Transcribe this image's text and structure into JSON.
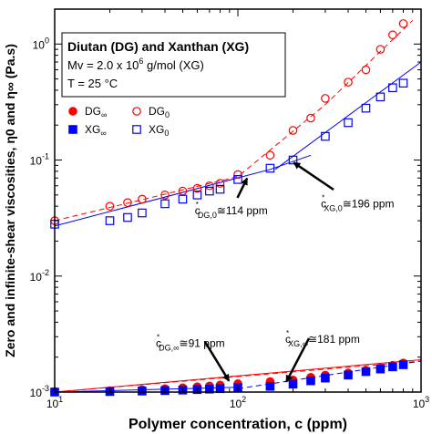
{
  "chart_data": {
    "type": "scatter",
    "x_scale": "log",
    "y_scale": "log",
    "xlim": [
      10,
      1000
    ],
    "ylim": [
      0.001,
      2
    ],
    "xlabel": "Polymer concentration, c (ppm)",
    "ylabel": "Zero and infinite-shear viscosities, η0 and η∞ (Pa.s)",
    "x_ticks": [
      {
        "v": 10,
        "label": "10^1"
      },
      {
        "v": 100,
        "label": "10^2"
      },
      {
        "v": 1000,
        "label": "10^3"
      }
    ],
    "y_ticks": [
      {
        "v": 0.001,
        "label": "10^-3"
      },
      {
        "v": 0.01,
        "label": "10^-2"
      },
      {
        "v": 0.1,
        "label": "10^-1"
      },
      {
        "v": 1,
        "label": "10^0"
      }
    ],
    "info": [
      "Diutan (DG) and Xanthan (XG)",
      "Mv = 2.0 x 10^6 g/mol (XG)",
      "T = 25 °C"
    ],
    "legend": [
      {
        "name": "DG∞",
        "marker": "filled-circle",
        "color": "#ff0000"
      },
      {
        "name": "DG0",
        "marker": "open-circle",
        "color": "#ff0000"
      },
      {
        "name": "XG∞",
        "marker": "filled-square",
        "color": "#0000ff"
      },
      {
        "name": "XG0",
        "marker": "open-square",
        "color": "#0000ff"
      }
    ],
    "series": [
      {
        "name": "DG0",
        "color": "#ff0000",
        "marker": "open-circle",
        "points": [
          [
            10,
            0.03
          ],
          [
            20,
            0.04
          ],
          [
            25,
            0.043
          ],
          [
            30,
            0.046
          ],
          [
            40,
            0.05
          ],
          [
            50,
            0.054
          ],
          [
            60,
            0.057
          ],
          [
            70,
            0.06
          ],
          [
            80,
            0.063
          ],
          [
            100,
            0.075
          ],
          [
            150,
            0.11
          ],
          [
            200,
            0.18
          ],
          [
            250,
            0.23
          ],
          [
            300,
            0.34
          ],
          [
            400,
            0.47
          ],
          [
            500,
            0.6
          ],
          [
            600,
            0.9
          ],
          [
            700,
            1.2
          ],
          [
            800,
            1.5
          ]
        ]
      },
      {
        "name": "XG0",
        "color": "#0000ff",
        "marker": "open-square",
        "points": [
          [
            10,
            0.028
          ],
          [
            20,
            0.03
          ],
          [
            25,
            0.032
          ],
          [
            30,
            0.035
          ],
          [
            40,
            0.042
          ],
          [
            50,
            0.046
          ],
          [
            60,
            0.05
          ],
          [
            70,
            0.054
          ],
          [
            80,
            0.056
          ],
          [
            100,
            0.068
          ],
          [
            150,
            0.085
          ],
          [
            200,
            0.1
          ],
          [
            300,
            0.16
          ],
          [
            400,
            0.21
          ],
          [
            500,
            0.28
          ],
          [
            600,
            0.35
          ],
          [
            700,
            0.42
          ],
          [
            800,
            0.46
          ]
        ]
      },
      {
        "name": "DG∞",
        "color": "#ff0000",
        "marker": "filled-circle",
        "points": [
          [
            10,
            0.00101
          ],
          [
            20,
            0.00103
          ],
          [
            30,
            0.00105
          ],
          [
            40,
            0.00107
          ],
          [
            50,
            0.00109
          ],
          [
            60,
            0.00111
          ],
          [
            70,
            0.00113
          ],
          [
            80,
            0.00115
          ],
          [
            100,
            0.00118
          ],
          [
            150,
            0.00123
          ],
          [
            200,
            0.00127
          ],
          [
            250,
            0.00134
          ],
          [
            300,
            0.0014
          ],
          [
            400,
            0.00146
          ],
          [
            500,
            0.00153
          ],
          [
            600,
            0.00162
          ],
          [
            700,
            0.0017
          ],
          [
            800,
            0.00178
          ]
        ]
      },
      {
        "name": "XG∞",
        "color": "#0000ff",
        "marker": "filled-square",
        "points": [
          [
            10,
            0.001
          ],
          [
            20,
            0.00101
          ],
          [
            30,
            0.00102
          ],
          [
            40,
            0.00103
          ],
          [
            50,
            0.00104
          ],
          [
            60,
            0.00105
          ],
          [
            70,
            0.00106
          ],
          [
            80,
            0.00107
          ],
          [
            100,
            0.00109
          ],
          [
            150,
            0.00112
          ],
          [
            200,
            0.00117
          ],
          [
            250,
            0.00125
          ],
          [
            300,
            0.00132
          ],
          [
            400,
            0.0014
          ],
          [
            500,
            0.0015
          ],
          [
            600,
            0.00158
          ],
          [
            700,
            0.00165
          ],
          [
            800,
            0.00172
          ]
        ]
      }
    ],
    "fit_lines": [
      {
        "color": "#ff0000",
        "dash": "dashed",
        "points": [
          [
            10,
            0.03
          ],
          [
            100,
            0.072
          ],
          [
            300,
            0.3
          ],
          [
            900,
            1.6
          ]
        ]
      },
      {
        "color": "#0000ff",
        "dash": "solid",
        "points": [
          [
            10,
            0.027
          ],
          [
            150,
            0.083
          ],
          [
            250,
            0.11
          ]
        ]
      },
      {
        "color": "#0000ff",
        "dash": "solid",
        "points": [
          [
            160,
            0.083
          ],
          [
            1000,
            0.7
          ]
        ]
      },
      {
        "color": "#ff0000",
        "dash": "dashed",
        "points": [
          [
            10,
            0.001
          ],
          [
            1000,
            0.00185
          ]
        ]
      },
      {
        "color": "#ff0000",
        "dash": "solid",
        "points": [
          [
            10,
            0.001
          ],
          [
            1000,
            0.0019
          ]
        ]
      },
      {
        "color": "#0000ff",
        "dash": "solid",
        "points": [
          [
            10,
            0.001
          ],
          [
            100,
            0.0011
          ]
        ]
      },
      {
        "color": "#0000ff",
        "dash": "dashed",
        "points": [
          [
            100,
            0.00107
          ],
          [
            1000,
            0.00185
          ]
        ]
      }
    ],
    "annotations": [
      {
        "main": "c",
        "sub": "DG,0",
        "rest": "≅114 ppm",
        "at": [
          114,
          0.073
        ],
        "text_pos": [
          92,
          0.034
        ]
      },
      {
        "main": "c",
        "sub": "XG,0",
        "rest": "≅196 ppm",
        "at": [
          196,
          0.098
        ],
        "text_pos": [
          450,
          0.039
        ]
      },
      {
        "main": "c",
        "sub": "DG,∞",
        "rest": "≅91 ppm",
        "at": [
          91,
          0.00119
        ],
        "text_pos": [
          55,
          0.00245
        ]
      },
      {
        "main": "c",
        "sub": "XG,∞",
        "rest": "≅181 ppm",
        "at": [
          181,
          0.00117
        ],
        "text_pos": [
          290,
          0.00265
        ]
      }
    ]
  }
}
